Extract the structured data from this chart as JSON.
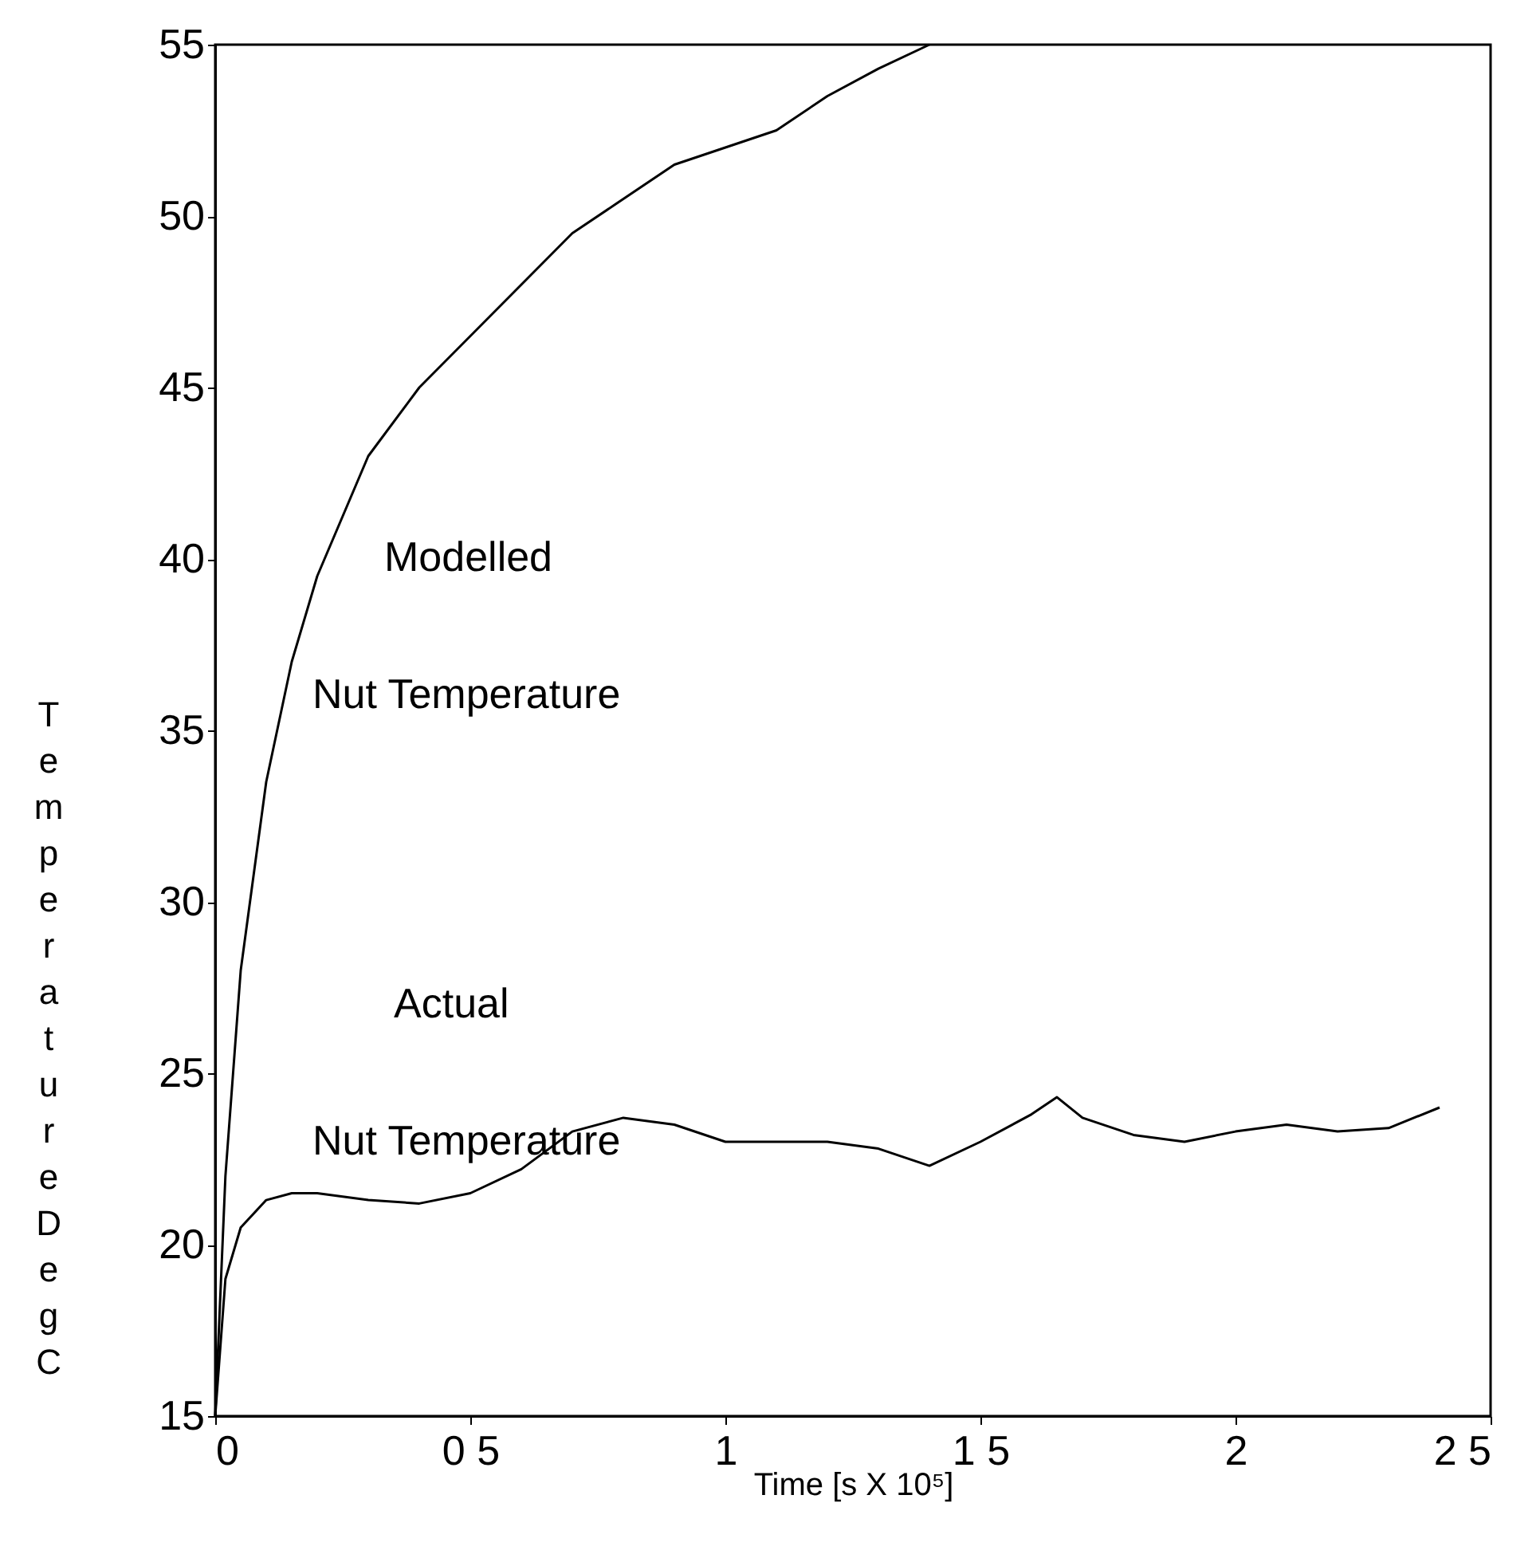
{
  "chart_data": {
    "type": "line",
    "xlabel": "Time [s X 10⁵]",
    "ylabel": "Temperature Deg C",
    "x": [
      0,
      0.02,
      0.05,
      0.1,
      0.15,
      0.2,
      0.3,
      0.4,
      0.5,
      0.6,
      0.7,
      0.8,
      0.9,
      1.0,
      1.1,
      1.2,
      1.3,
      1.4,
      1.5,
      1.6,
      1.65,
      1.7,
      1.8,
      1.9,
      2.0,
      2.1,
      2.2,
      2.3,
      2.4
    ],
    "series": [
      {
        "color": "#000000",
        "x": [
          0,
          0.02,
          0.05,
          0.1,
          0.15,
          0.2,
          0.3,
          0.4,
          0.5,
          0.6,
          0.7,
          0.8,
          0.9,
          1.0,
          1.1,
          1.2,
          1.3,
          1.4
        ],
        "values": [
          15,
          22,
          28,
          33.5,
          37,
          39.5,
          43,
          45,
          46.5,
          48,
          49.5,
          50.5,
          51.5,
          52,
          52.5,
          53.5,
          54.3,
          55
        ]
      },
      {
        "color": "#000000",
        "values": [
          15,
          19,
          20.5,
          21.3,
          21.5,
          21.5,
          21.3,
          21.2,
          21.5,
          22.2,
          23.3,
          23.7,
          23.5,
          23,
          23,
          23,
          22.8,
          22.3,
          23,
          23.8,
          24.3,
          23.7,
          23.2,
          23,
          23.3,
          23.5,
          23.3,
          23.4,
          24
        ]
      }
    ],
    "annotations": [
      "Modelled",
      "Nut  Temperature",
      "Actual",
      "Nut  Temperature"
    ],
    "xlim": [
      0,
      2.5
    ],
    "xticks": [
      0,
      {
        "value": 0.5,
        "label": "0 5"
      },
      1,
      {
        "value": 1.5,
        "label": "1 5"
      },
      2,
      {
        "value": 2.5,
        "label": "2 5"
      }
    ],
    "ylim": [
      15,
      55
    ],
    "yticks": [
      15,
      20,
      25,
      30,
      35,
      40,
      45,
      50,
      55
    ],
    "grid": false,
    "legend": false,
    "marker": "none",
    "line_style": "solid"
  }
}
